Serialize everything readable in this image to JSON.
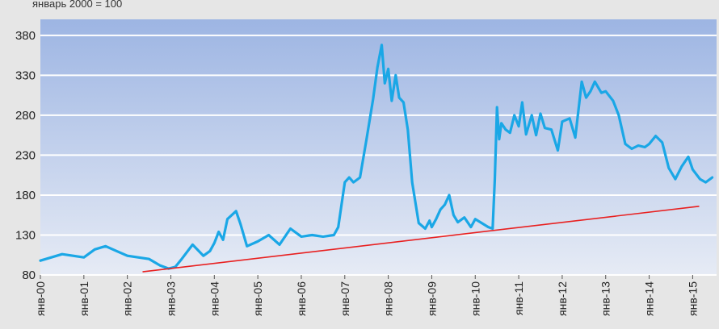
{
  "chart_data": {
    "type": "line",
    "title": "январь 2000 = 100",
    "ylim": [
      80,
      400
    ],
    "yticks": [
      80,
      130,
      180,
      230,
      280,
      330,
      380
    ],
    "xlabels": [
      "янв-00",
      "янв-01",
      "янв-02",
      "янв-03",
      "янв-04",
      "янв-05",
      "янв-06",
      "янв-07",
      "янв-08",
      "янв-09",
      "янв-10",
      "янв-11",
      "янв-12",
      "янв-13",
      "янв-14",
      "янв-15"
    ],
    "grid": "horizontal",
    "legend": "none",
    "colors": {
      "series": "#1aa7e6",
      "trend": "#e82020",
      "plot_top": "#9db5e3",
      "plot_bottom": "#e6ebf5"
    },
    "series": [
      {
        "x": [
          2000.0,
          2000.25,
          2000.5,
          2000.75,
          2001.0,
          2001.25,
          2001.5,
          2001.75,
          2002.0,
          2002.25,
          2002.5,
          2002.75,
          2002.95,
          2003.1,
          2003.25,
          2003.5,
          2003.75,
          2003.9,
          2004.0,
          2004.1,
          2004.2,
          2004.3,
          2004.5,
          2004.6,
          2004.75,
          2005.0,
          2005.25,
          2005.5,
          2005.75,
          2006.0,
          2006.25,
          2006.5,
          2006.75,
          2006.85,
          2007.0,
          2007.1,
          2007.2,
          2007.35,
          2007.5,
          2007.65,
          2007.75,
          2007.85,
          2007.92,
          2008.0,
          2008.08,
          2008.17,
          2008.25,
          2008.35,
          2008.45,
          2008.55,
          2008.7,
          2008.85,
          2008.95,
          2009.0,
          2009.1,
          2009.2,
          2009.3,
          2009.4,
          2009.5,
          2009.6,
          2009.75,
          2009.9,
          2010.0,
          2010.15,
          2010.3,
          2010.4,
          2010.45,
          2010.5,
          2010.55,
          2010.6,
          2010.7,
          2010.8,
          2010.9,
          2011.0,
          2011.08,
          2011.17,
          2011.3,
          2011.4,
          2011.5,
          2011.6,
          2011.75,
          2011.9,
          2012.0,
          2012.17,
          2012.3,
          2012.45,
          2012.55,
          2012.65,
          2012.75,
          2012.9,
          2013.0,
          2013.17,
          2013.3,
          2013.45,
          2013.6,
          2013.75,
          2013.9,
          2014.0,
          2014.15,
          2014.3,
          2014.45,
          2014.6,
          2014.75,
          2014.9,
          2015.0,
          2015.17,
          2015.3,
          2015.45
        ],
        "values": [
          98,
          102,
          106,
          104,
          102,
          112,
          116,
          110,
          104,
          102,
          100,
          92,
          88,
          90,
          100,
          118,
          104,
          110,
          120,
          134,
          124,
          150,
          160,
          144,
          116,
          122,
          130,
          118,
          138,
          128,
          130,
          128,
          130,
          140,
          196,
          202,
          196,
          202,
          250,
          300,
          340,
          368,
          320,
          338,
          298,
          330,
          302,
          296,
          262,
          196,
          145,
          138,
          148,
          140,
          150,
          162,
          168,
          180,
          155,
          146,
          152,
          140,
          150,
          145,
          140,
          138,
          200,
          290,
          250,
          270,
          262,
          258,
          280,
          266,
          296,
          256,
          280,
          255,
          282,
          264,
          262,
          236,
          272,
          276,
          252,
          322,
          302,
          310,
          322,
          308,
          310,
          298,
          280,
          244,
          238,
          242,
          240,
          244,
          254,
          246,
          214,
          200,
          216,
          228,
          212,
          200,
          196,
          202
        ]
      }
    ],
    "trendline": {
      "x": [
        2002.35,
        2015.15
      ],
      "y": [
        84,
        166
      ]
    }
  }
}
